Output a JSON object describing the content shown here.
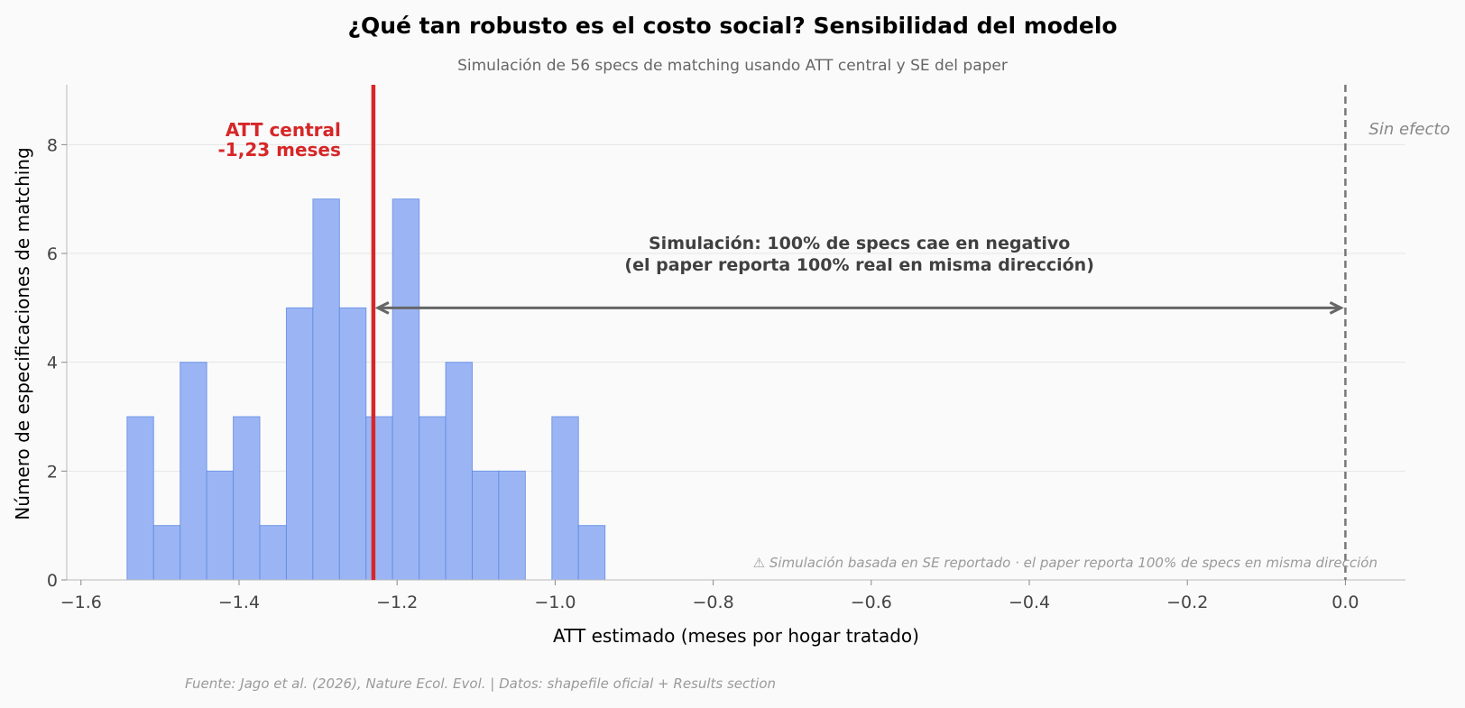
{
  "chart_data": {
    "type": "bar",
    "title": "¿Qué tan robusto es el costo social? Sensibilidad del modelo",
    "subtitle": "Simulación de 56 specs de matching usando ATT central y SE del paper",
    "xlabel": "ATT estimado (meses por hogar tratado)",
    "ylabel": "Número de especificaciones de matching",
    "xlim": [
      -1.618,
      0.076
    ],
    "ylim": [
      0,
      9.1
    ],
    "xticks": [
      -1.6,
      -1.4,
      -1.2,
      -1.0,
      -0.8,
      -0.6,
      -0.4,
      -0.2,
      0.0
    ],
    "xtick_labels": [
      "−1.6",
      "−1.4",
      "−1.2",
      "−1.0",
      "−0.8",
      "−0.6",
      "−0.4",
      "−0.2",
      "0.0"
    ],
    "yticks": [
      0,
      2,
      4,
      6,
      8
    ],
    "ytick_labels": [
      "0",
      "2",
      "4",
      "6",
      "8"
    ],
    "grid": "horizontal",
    "bins": [
      {
        "x0": -1.5417,
        "x1": -1.5081,
        "count": 3
      },
      {
        "x0": -1.5081,
        "x1": -1.4745,
        "count": 1
      },
      {
        "x0": -1.4745,
        "x1": -1.4409,
        "count": 4
      },
      {
        "x0": -1.4409,
        "x1": -1.4073,
        "count": 2
      },
      {
        "x0": -1.4073,
        "x1": -1.3737,
        "count": 3
      },
      {
        "x0": -1.3737,
        "x1": -1.3401,
        "count": 1
      },
      {
        "x0": -1.3401,
        "x1": -1.3065,
        "count": 5
      },
      {
        "x0": -1.3065,
        "x1": -1.2729,
        "count": 7
      },
      {
        "x0": -1.2729,
        "x1": -1.2393,
        "count": 5
      },
      {
        "x0": -1.2393,
        "x1": -1.2057,
        "count": 3
      },
      {
        "x0": -1.2057,
        "x1": -1.1721,
        "count": 7
      },
      {
        "x0": -1.1721,
        "x1": -1.1385,
        "count": 3
      },
      {
        "x0": -1.1385,
        "x1": -1.1049,
        "count": 4
      },
      {
        "x0": -1.1049,
        "x1": -1.0713,
        "count": 2
      },
      {
        "x0": -1.0713,
        "x1": -1.0377,
        "count": 2
      },
      {
        "x0": -1.0377,
        "x1": -1.0041,
        "count": 0
      },
      {
        "x0": -1.0041,
        "x1": -0.9705,
        "count": 3
      },
      {
        "x0": -0.9705,
        "x1": -0.9369,
        "count": 1
      }
    ],
    "central_att": -1.23,
    "central_label_line1": "ATT central",
    "central_label_line2": "-1,23 meses",
    "no_effect_x": 0.0,
    "no_effect_label": "Sin efecto",
    "arrow": {
      "from": -1.23,
      "to": 0.0,
      "y": 5
    },
    "arrow_label_line1": "Simulación: 100% de specs cae en negativo",
    "arrow_label_line2": "(el paper reporta 100% real en misma dirección)",
    "note": "⚠ Simulación basada en SE reportado · el paper reporta 100% de specs en misma dirección",
    "source": "Fuente: Jago et al. (2026), Nature Ecol. Evol. | Datos: shapefile oficial + Results section",
    "colors": {
      "bar_fill": "#9bb5f4",
      "bar_edge": "#5f8ae6",
      "central_line": "#d62728",
      "central_text": "#d62728",
      "no_effect_line": "#777777",
      "arrow": "#666666",
      "arrow_text": "#404040",
      "note_text": "#9a9a9a",
      "background": "#fafafa"
    }
  }
}
